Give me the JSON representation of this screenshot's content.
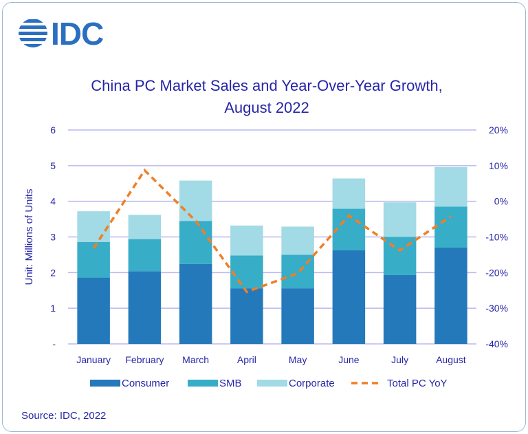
{
  "logo": {
    "text": "IDC"
  },
  "chart_data": {
    "type": "bar",
    "title_line1": "China PC Market Sales and Year-Over-Year Growth,",
    "title_line2": "August 2022",
    "ylabel": "Unit: Millions of Units",
    "ylim": [
      0,
      6
    ],
    "y_ticks": [
      "-",
      "1",
      "2",
      "3",
      "4",
      "5",
      "6"
    ],
    "y2lim": [
      -40,
      20
    ],
    "y2_ticks": [
      "-40%",
      "-30%",
      "-20%",
      "-10%",
      "0%",
      "10%",
      "20%"
    ],
    "grid": true,
    "legend": "bottom",
    "categories": [
      "January",
      "February",
      "March",
      "April",
      "May",
      "June",
      "July",
      "August"
    ],
    "series": [
      {
        "name": "Consumer",
        "kind": "stacked-bar",
        "color": "#2479bb",
        "values": [
          1.86,
          2.04,
          2.24,
          1.56,
          1.56,
          2.63,
          1.93,
          2.7
        ]
      },
      {
        "name": "SMB",
        "kind": "stacked-bar",
        "color": "#37adc8",
        "values": [
          1.0,
          0.9,
          1.21,
          0.92,
          0.94,
          1.16,
          1.07,
          1.15
        ]
      },
      {
        "name": "Corporate",
        "kind": "stacked-bar",
        "color": "#a2dae5",
        "values": [
          0.86,
          0.68,
          1.13,
          0.84,
          0.79,
          0.85,
          0.97,
          1.11
        ]
      },
      {
        "name": "Total PC YoY",
        "kind": "line",
        "axis": "right",
        "color": "#f07f25",
        "values": [
          -13.2,
          8.7,
          -5.5,
          -25.4,
          -20.2,
          -4.0,
          -13.8,
          -4.2
        ]
      }
    ]
  },
  "source": "Source: IDC, 2022"
}
